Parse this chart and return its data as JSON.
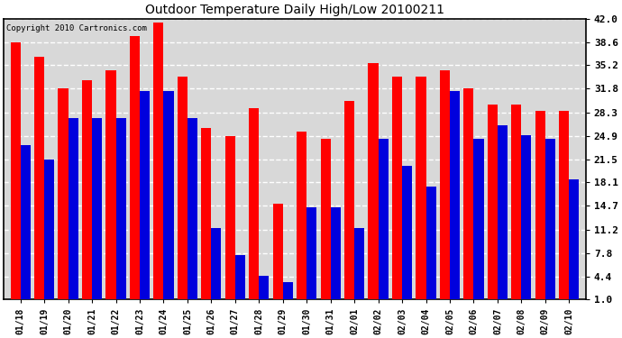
{
  "title": "Outdoor Temperature Daily High/Low 20100211",
  "copyright": "Copyright 2010 Cartronics.com",
  "dates": [
    "01/18",
    "01/19",
    "01/20",
    "01/21",
    "01/22",
    "01/23",
    "01/24",
    "01/25",
    "01/26",
    "01/27",
    "01/28",
    "01/29",
    "01/30",
    "01/31",
    "02/01",
    "02/02",
    "02/03",
    "02/04",
    "02/05",
    "02/06",
    "02/07",
    "02/08",
    "02/09",
    "02/10"
  ],
  "highs": [
    38.6,
    36.5,
    31.8,
    33.0,
    34.5,
    39.5,
    41.5,
    33.5,
    26.0,
    24.9,
    29.0,
    15.0,
    25.5,
    24.5,
    30.0,
    35.5,
    33.5,
    33.5,
    34.5,
    31.8,
    29.5,
    29.5,
    28.5,
    28.5
  ],
  "lows": [
    23.5,
    21.5,
    27.5,
    27.5,
    27.5,
    31.5,
    31.5,
    27.5,
    11.5,
    7.5,
    4.5,
    3.5,
    14.5,
    14.5,
    11.5,
    24.5,
    20.5,
    17.5,
    31.5,
    24.5,
    26.5,
    25.0,
    24.5,
    18.5
  ],
  "high_color": "#ff0000",
  "low_color": "#0000dd",
  "bg_color": "#ffffff",
  "yticks": [
    1.0,
    4.4,
    7.8,
    11.2,
    14.7,
    18.1,
    21.5,
    24.9,
    28.3,
    31.8,
    35.2,
    38.6,
    42.0
  ],
  "ymin": 1.0,
  "ymax": 42.0
}
